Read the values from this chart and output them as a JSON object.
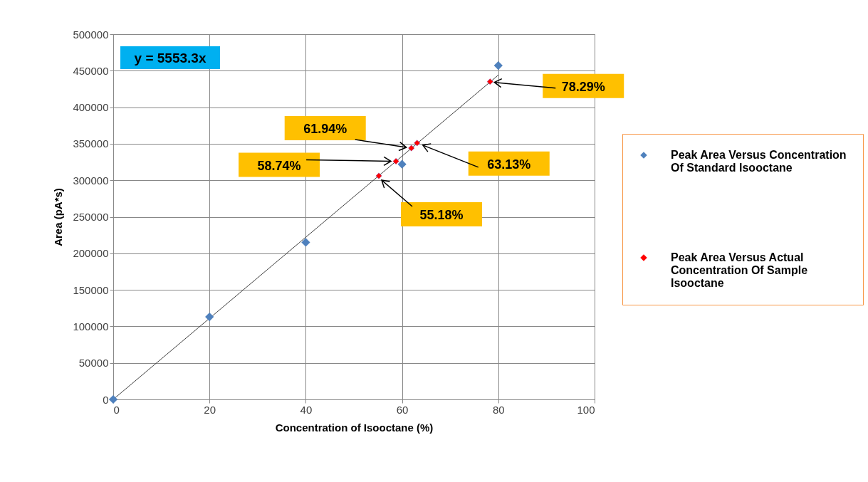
{
  "chart_data": {
    "type": "scatter",
    "xlabel": "Concentration of Isooctane (%)",
    "ylabel": "Area (pA*s)",
    "xlim": [
      0,
      100
    ],
    "xticks": [
      0,
      20,
      40,
      60,
      80,
      100
    ],
    "ylim": [
      0,
      500000
    ],
    "yticks": [
      0,
      50000,
      100000,
      150000,
      200000,
      250000,
      300000,
      350000,
      400000,
      450000,
      500000
    ],
    "grid": true,
    "legend": "right",
    "marker": "diamond",
    "series": [
      {
        "name": "Peak Area Versus Concentration Of Standard Isooctane",
        "color": "#4f81bd",
        "x": [
          0,
          20,
          40,
          60,
          80
        ],
        "values": [
          0,
          113000,
          215000,
          322000,
          457000
        ]
      },
      {
        "name": "Peak Area Versus Actual Concentration Of Sample Isooctane",
        "color": "#ff0000",
        "x": [
          55.18,
          58.74,
          61.94,
          63.13,
          78.29
        ],
        "values": [
          306000,
          326000,
          344000,
          351000,
          435000
        ]
      },
      {
        "type": "line",
        "color": "#404040",
        "marker": "none",
        "x": [
          0,
          80
        ],
        "values": [
          0,
          444000
        ]
      }
    ],
    "annotations": [
      "y = 5553.3x",
      {
        "text": "78.29%",
        "x": 78.29,
        "y": 435000
      },
      {
        "text": "61.94%",
        "x": 61.94,
        "y": 344000
      },
      {
        "text": "58.74%",
        "x": 58.74,
        "y": 326000
      },
      {
        "text": "63.13%",
        "x": 63.13,
        "y": 351000
      },
      {
        "text": "55.18%",
        "x": 55.18,
        "y": 306000
      }
    ]
  }
}
